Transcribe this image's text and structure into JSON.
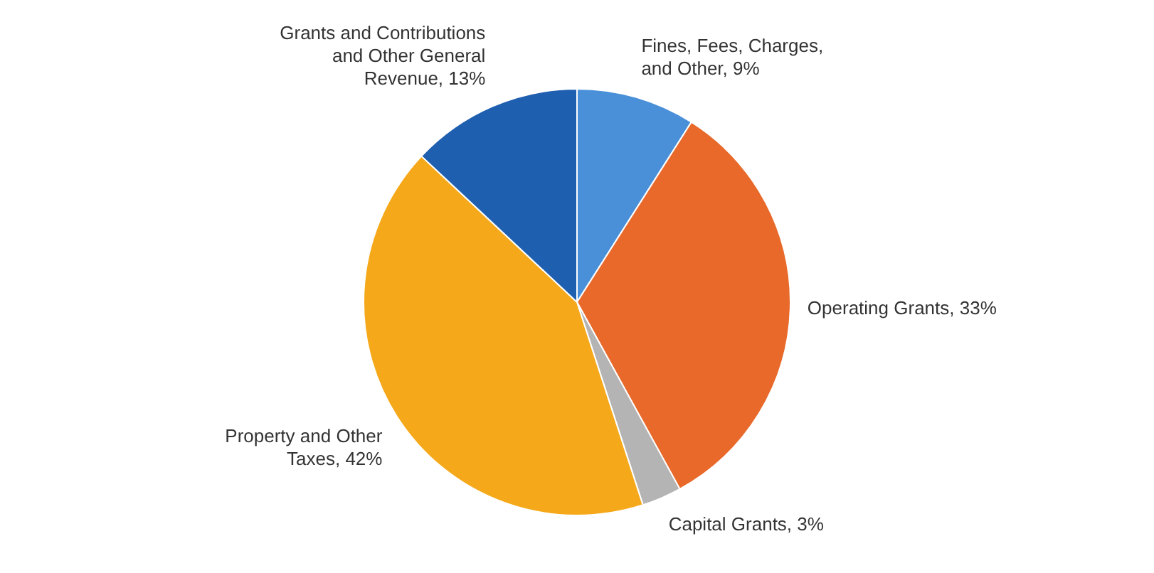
{
  "chart_data": {
    "type": "pie",
    "categories": [
      "Fines, Fees, Charges, and Other",
      "Operating Grants",
      "Capital Grants",
      "Property and Other Taxes",
      "Grants and Contributions and Other General Revenue"
    ],
    "values": [
      9,
      33,
      3,
      42,
      13
    ],
    "value_labels": [
      "9%",
      "33%",
      "3%",
      "42%",
      "13%"
    ],
    "colors": [
      "#4a90d9",
      "#e8692a",
      "#b4b4b4",
      "#f5a91a",
      "#1f5fb0"
    ],
    "legend": false
  }
}
